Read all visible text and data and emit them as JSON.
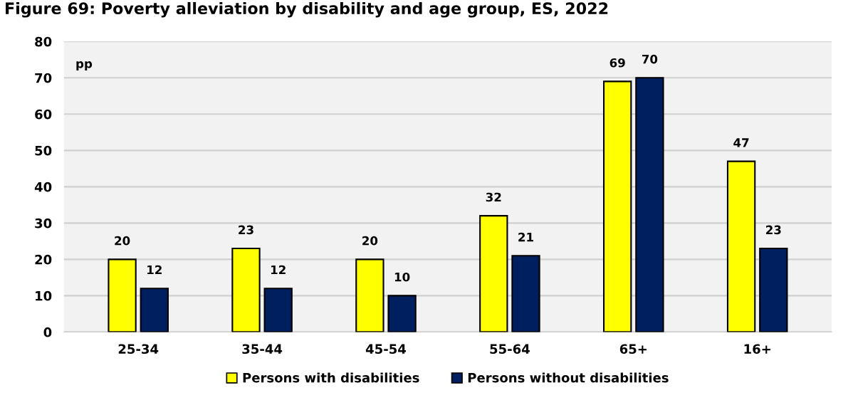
{
  "chart_data": {
    "type": "bar",
    "title": "Figure 69: Poverty alleviation by disability and age group, ES, 2022",
    "ylabel": "pp",
    "categories": [
      "25-34",
      "35-44",
      "45-54",
      "55-64",
      "65+",
      "16+"
    ],
    "series": [
      {
        "name": "Persons with disabilities",
        "color": "#ffff00",
        "values": [
          20,
          23,
          20,
          32,
          69,
          47
        ]
      },
      {
        "name": "Persons without disabilities",
        "color": "#001f5f",
        "values": [
          12,
          12,
          10,
          21,
          70,
          23
        ]
      }
    ],
    "ylim": [
      0,
      80
    ],
    "yticks": [
      0,
      10,
      20,
      30,
      40,
      50,
      60,
      70,
      80
    ],
    "grid": "y",
    "legend": "bottom",
    "data_labels": true
  }
}
